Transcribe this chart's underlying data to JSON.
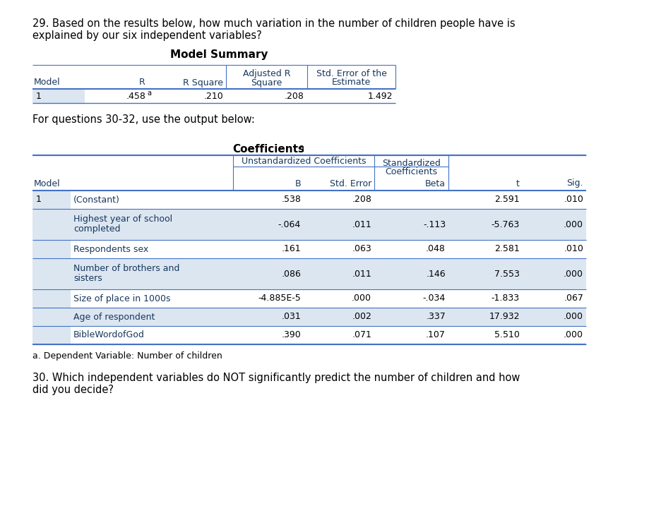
{
  "bg_color": "#ffffff",
  "text_color": "#000000",
  "dark_blue": "#17375e",
  "line_color": "#4472c4",
  "light_blue": "#dce6f1",
  "question29": "29. Based on the results below, how much variation in the number of children people have is\nexplained by our six independent variables?",
  "ms_title": "Model Summary",
  "ms_row": [
    "1",
    ".458",
    ".210",
    ".208",
    "1.492"
  ],
  "coeff_title": "Coefficients",
  "coeff_data": [
    [
      "1",
      "(Constant)",
      ".538",
      ".208",
      "",
      "2.591",
      ".010"
    ],
    [
      "",
      "Highest year of school\ncompleted",
      "-.064",
      ".011",
      "-.113",
      "-5.763",
      ".000"
    ],
    [
      "",
      "Respondents sex",
      ".161",
      ".063",
      ".048",
      "2.581",
      ".010"
    ],
    [
      "",
      "Number of brothers and\nsisters",
      ".086",
      ".011",
      ".146",
      "7.553",
      ".000"
    ],
    [
      "",
      "Size of place in 1000s",
      "-4.885E-5",
      ".000",
      "-.034",
      "-1.833",
      ".067"
    ],
    [
      "",
      "Age of respondent",
      ".031",
      ".002",
      ".337",
      "17.932",
      ".000"
    ],
    [
      "",
      "BibleWordofGod",
      ".390",
      ".071",
      ".107",
      "5.510",
      ".000"
    ]
  ],
  "footnote": "a. Dependent Variable: Number of children",
  "question30": "30. Which independent variables do NOT significantly predict the number of children and how\ndid you decide?"
}
